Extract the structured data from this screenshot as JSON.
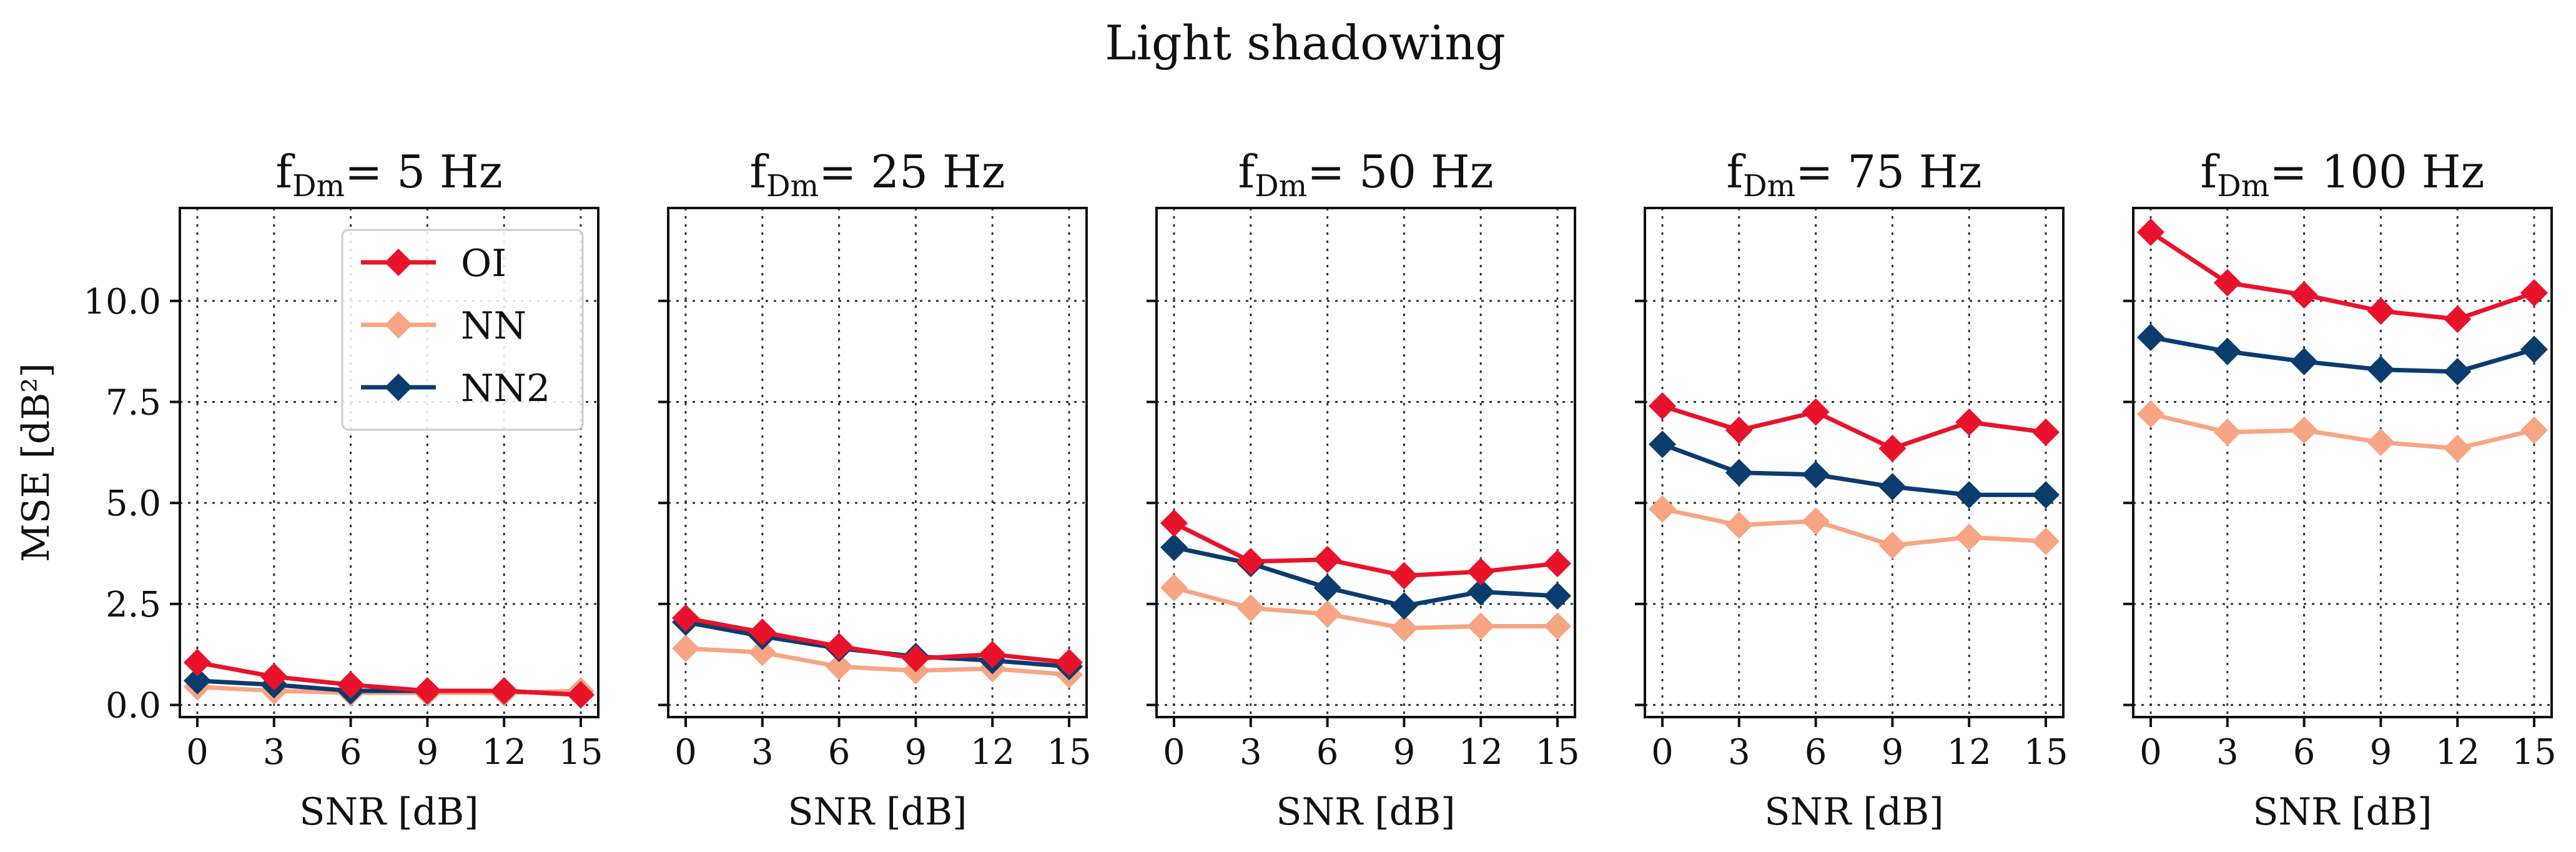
{
  "figure_title": "Light shadowing",
  "colors": {
    "OI": "#E8132B",
    "NN": "#F7A582",
    "NN2": "#0B3C6E",
    "grid": "#333333",
    "axis": "#111111"
  },
  "chart_data": [
    {
      "type": "line",
      "title": {
        "main": "f",
        "sub": "Dm",
        "rest": "= 5 Hz"
      },
      "xlabel": "SNR [dB]",
      "ylabel": "MSE [dB²]",
      "x": [
        0,
        3,
        6,
        9,
        12,
        15
      ],
      "xticks": [
        "0",
        "3",
        "6",
        "9",
        "12",
        "15"
      ],
      "yticks": [
        "0.0",
        "2.5",
        "5.0",
        "7.5",
        "10.0"
      ],
      "ylim": [
        -0.3,
        12.3
      ],
      "grid": true,
      "legend": "top-right",
      "series": [
        {
          "name": "OI",
          "values": [
            1.05,
            0.7,
            0.5,
            0.35,
            0.35,
            0.25
          ]
        },
        {
          "name": "NN",
          "values": [
            0.45,
            0.35,
            0.3,
            0.3,
            0.3,
            0.35
          ]
        },
        {
          "name": "NN2",
          "values": [
            0.6,
            0.5,
            0.35,
            0.35,
            0.35,
            0.25
          ]
        }
      ]
    },
    {
      "type": "line",
      "title": {
        "main": "f",
        "sub": "Dm",
        "rest": "= 25 Hz"
      },
      "xlabel": "SNR [dB]",
      "ylabel": "",
      "x": [
        0,
        3,
        6,
        9,
        12,
        15
      ],
      "xticks": [
        "0",
        "3",
        "6",
        "9",
        "12",
        "15"
      ],
      "yticks": [
        "",
        "",
        "",
        "",
        ""
      ],
      "ylim": [
        -0.3,
        12.3
      ],
      "grid": true,
      "series": [
        {
          "name": "OI",
          "values": [
            2.15,
            1.8,
            1.45,
            1.15,
            1.25,
            1.05
          ]
        },
        {
          "name": "NN",
          "values": [
            1.4,
            1.3,
            0.95,
            0.85,
            0.9,
            0.75
          ]
        },
        {
          "name": "NN2",
          "values": [
            2.05,
            1.7,
            1.4,
            1.2,
            1.1,
            0.95
          ]
        }
      ]
    },
    {
      "type": "line",
      "title": {
        "main": "f",
        "sub": "Dm",
        "rest": "= 50 Hz"
      },
      "xlabel": "SNR [dB]",
      "ylabel": "",
      "x": [
        0,
        3,
        6,
        9,
        12,
        15
      ],
      "xticks": [
        "0",
        "3",
        "6",
        "9",
        "12",
        "15"
      ],
      "yticks": [
        "",
        "",
        "",
        "",
        ""
      ],
      "ylim": [
        -0.3,
        12.3
      ],
      "grid": true,
      "series": [
        {
          "name": "OI",
          "values": [
            4.5,
            3.55,
            3.6,
            3.2,
            3.3,
            3.5
          ]
        },
        {
          "name": "NN",
          "values": [
            2.9,
            2.4,
            2.25,
            1.9,
            1.95,
            1.95
          ]
        },
        {
          "name": "NN2",
          "values": [
            3.9,
            3.5,
            2.9,
            2.45,
            2.8,
            2.7
          ]
        }
      ]
    },
    {
      "type": "line",
      "title": {
        "main": "f",
        "sub": "Dm",
        "rest": "= 75 Hz"
      },
      "xlabel": "SNR [dB]",
      "ylabel": "",
      "x": [
        0,
        3,
        6,
        9,
        12,
        15
      ],
      "xticks": [
        "0",
        "3",
        "6",
        "9",
        "12",
        "15"
      ],
      "yticks": [
        "",
        "",
        "",
        "",
        ""
      ],
      "ylim": [
        -0.3,
        12.3
      ],
      "grid": true,
      "series": [
        {
          "name": "OI",
          "values": [
            7.4,
            6.8,
            7.25,
            6.35,
            7.0,
            6.75
          ]
        },
        {
          "name": "NN",
          "values": [
            4.85,
            4.45,
            4.55,
            3.95,
            4.15,
            4.05
          ]
        },
        {
          "name": "NN2",
          "values": [
            6.45,
            5.75,
            5.7,
            5.4,
            5.2,
            5.2
          ]
        }
      ]
    },
    {
      "type": "line",
      "title": {
        "main": "f",
        "sub": "Dm",
        "rest": "= 100 Hz"
      },
      "xlabel": "SNR [dB]",
      "ylabel": "",
      "x": [
        0,
        3,
        6,
        9,
        12,
        15
      ],
      "xticks": [
        "0",
        "3",
        "6",
        "9",
        "12",
        "15"
      ],
      "yticks": [
        "",
        "",
        "",
        "",
        ""
      ],
      "ylim": [
        -0.3,
        12.3
      ],
      "grid": true,
      "series": [
        {
          "name": "OI",
          "values": [
            11.7,
            10.45,
            10.15,
            9.75,
            9.55,
            10.2
          ]
        },
        {
          "name": "NN",
          "values": [
            7.2,
            6.75,
            6.8,
            6.5,
            6.35,
            6.8
          ]
        },
        {
          "name": "NN2",
          "values": [
            9.1,
            8.75,
            8.5,
            8.3,
            8.25,
            8.8
          ]
        }
      ]
    }
  ]
}
